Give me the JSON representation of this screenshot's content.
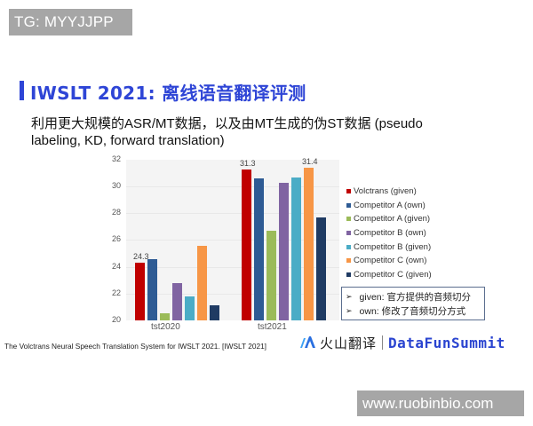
{
  "badge": {
    "text": "TG: MYYJJPP"
  },
  "slide": {
    "title": "IWSLT 2021: 离线语音翻译评测",
    "subtitle": "利用更大规模的ASR/MT数据，以及由MT生成的伪ST数据 (pseudo labeling, KD, forward translation)"
  },
  "chart_data": {
    "type": "bar",
    "title": "",
    "xlabel": "",
    "ylabel": "",
    "ylim": [
      20,
      32
    ],
    "yticks": [
      "32",
      "30",
      "28",
      "26",
      "24",
      "22",
      "20"
    ],
    "grid": true,
    "legend_position": "right",
    "categories": [
      "tst2020",
      "tst2021"
    ],
    "series": [
      {
        "name": "Volctrans (given)",
        "color": "#c00000",
        "values": [
          24.3,
          31.3
        ]
      },
      {
        "name": "Competitor A (own)",
        "color": "#2e5b94",
        "values": [
          24.6,
          30.6
        ]
      },
      {
        "name": "Competitor A (given)",
        "color": "#9bbb59",
        "values": [
          20.5,
          26.7
        ]
      },
      {
        "name": "Competitor B (own)",
        "color": "#8064a2",
        "values": [
          22.8,
          30.3
        ]
      },
      {
        "name": "Competitor B (given)",
        "color": "#4bacc6",
        "values": [
          21.8,
          30.7
        ]
      },
      {
        "name": "Competitor C (own)",
        "color": "#f79646",
        "values": [
          25.6,
          31.4
        ]
      },
      {
        "name": "Competitor C (given)",
        "color": "#1f3b63",
        "values": [
          21.1,
          27.7
        ]
      }
    ],
    "annotations": [
      {
        "category": "tst2020",
        "series": "Volctrans (given)",
        "text": "24.3"
      },
      {
        "category": "tst2021",
        "series": "Volctrans (given)",
        "text": "31.3"
      },
      {
        "category": "tst2021",
        "series": "Competitor C (own)",
        "text": "31.4"
      }
    ]
  },
  "notes": [
    {
      "icon": "arrow-bullet-icon",
      "text": "given: 官方提供的音频切分"
    },
    {
      "icon": "arrow-bullet-icon",
      "text": "own: 修改了音频切分方式"
    }
  ],
  "footer": {
    "citation": "The Volctrans Neural Speech Translation System for IWSLT 2021. [IWSLT 2021]",
    "brand_cn": "火山翻译",
    "brand_en": "DataFunSummit"
  },
  "watermark": {
    "text": "www.ruobinbio.com"
  }
}
